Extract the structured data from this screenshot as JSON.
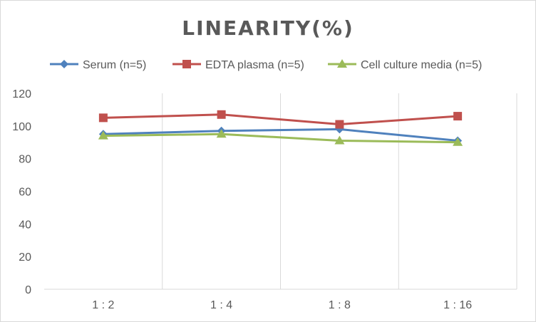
{
  "chart_data": {
    "type": "line",
    "title": "LINEARITY(%)",
    "xlabel": "",
    "ylabel": "",
    "categories": [
      "1:2",
      "1:4",
      "1:8",
      "1:16"
    ],
    "ylim": [
      0,
      120
    ],
    "yticks": [
      0,
      20,
      40,
      60,
      80,
      100,
      120
    ],
    "grid": "vertical",
    "legend": "top",
    "series": [
      {
        "name": "Serum (n=5)",
        "values": [
          95,
          97,
          98,
          91
        ],
        "color": "#4f81bd",
        "marker": "diamond"
      },
      {
        "name": "EDTA plasma (n=5)",
        "values": [
          105,
          107,
          101,
          106
        ],
        "color": "#c0504d",
        "marker": "square"
      },
      {
        "name": "Cell culture media (n=5)",
        "values": [
          94,
          95,
          91,
          90
        ],
        "color": "#9bbb59",
        "marker": "triangle"
      }
    ]
  }
}
